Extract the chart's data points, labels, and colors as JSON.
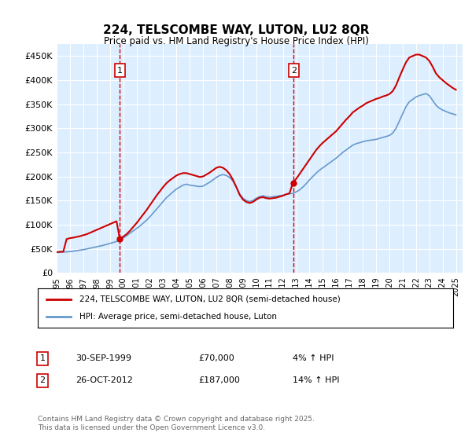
{
  "title": "224, TELSCOMBE WAY, LUTON, LU2 8QR",
  "subtitle": "Price paid vs. HM Land Registry's House Price Index (HPI)",
  "ylabel_ticks": [
    "£0",
    "£50K",
    "£100K",
    "£150K",
    "£200K",
    "£250K",
    "£300K",
    "£350K",
    "£400K",
    "£450K"
  ],
  "ytick_values": [
    0,
    50000,
    100000,
    150000,
    200000,
    250000,
    300000,
    350000,
    400000,
    450000
  ],
  "ylim": [
    0,
    475000
  ],
  "xlim_start": 1995.0,
  "xlim_end": 2025.5,
  "sale1_x": 1999.75,
  "sale1_y": 70000,
  "sale1_label": "1",
  "sale2_x": 2012.82,
  "sale2_y": 187000,
  "sale2_label": "2",
  "legend_line1": "224, TELSCOMBE WAY, LUTON, LU2 8QR (semi-detached house)",
  "legend_line2": "HPI: Average price, semi-detached house, Luton",
  "table_row1": [
    "1",
    "30-SEP-1999",
    "£70,000",
    "4% ↑ HPI"
  ],
  "table_row2": [
    "2",
    "26-OCT-2012",
    "£187,000",
    "14% ↑ HPI"
  ],
  "footer": "Contains HM Land Registry data © Crown copyright and database right 2025.\nThis data is licensed under the Open Government Licence v3.0.",
  "color_sale": "#cc0000",
  "color_hpi": "#6699cc",
  "background_plot": "#ddeeff",
  "background_fig": "#ffffff",
  "grid_color": "#ffffff",
  "dashed_color": "#cc0000",
  "hpi_data_x": [
    1995.0,
    1995.25,
    1995.5,
    1995.75,
    1996.0,
    1996.25,
    1996.5,
    1996.75,
    1997.0,
    1997.25,
    1997.5,
    1997.75,
    1998.0,
    1998.25,
    1998.5,
    1998.75,
    1999.0,
    1999.25,
    1999.5,
    1999.75,
    2000.0,
    2000.25,
    2000.5,
    2000.75,
    2001.0,
    2001.25,
    2001.5,
    2001.75,
    2002.0,
    2002.25,
    2002.5,
    2002.75,
    2003.0,
    2003.25,
    2003.5,
    2003.75,
    2004.0,
    2004.25,
    2004.5,
    2004.75,
    2005.0,
    2005.25,
    2005.5,
    2005.75,
    2006.0,
    2006.25,
    2006.5,
    2006.75,
    2007.0,
    2007.25,
    2007.5,
    2007.75,
    2008.0,
    2008.25,
    2008.5,
    2008.75,
    2009.0,
    2009.25,
    2009.5,
    2009.75,
    2010.0,
    2010.25,
    2010.5,
    2010.75,
    2011.0,
    2011.25,
    2011.5,
    2011.75,
    2012.0,
    2012.25,
    2012.5,
    2012.75,
    2013.0,
    2013.25,
    2013.5,
    2013.75,
    2014.0,
    2014.25,
    2014.5,
    2014.75,
    2015.0,
    2015.25,
    2015.5,
    2015.75,
    2016.0,
    2016.25,
    2016.5,
    2016.75,
    2017.0,
    2017.25,
    2017.5,
    2017.75,
    2018.0,
    2018.25,
    2018.5,
    2018.75,
    2019.0,
    2019.25,
    2019.5,
    2019.75,
    2020.0,
    2020.25,
    2020.5,
    2020.75,
    2021.0,
    2021.25,
    2021.5,
    2021.75,
    2022.0,
    2022.25,
    2022.5,
    2022.75,
    2023.0,
    2023.25,
    2023.5,
    2023.75,
    2024.0,
    2024.25,
    2024.5,
    2024.75,
    2025.0
  ],
  "hpi_data_y": [
    42000,
    42500,
    43000,
    43500,
    44000,
    45000,
    46000,
    47000,
    48000,
    49500,
    51000,
    52500,
    54000,
    55500,
    57000,
    59000,
    61000,
    63000,
    65000,
    67000,
    72000,
    77000,
    82000,
    87000,
    92000,
    97000,
    103000,
    109000,
    116000,
    124000,
    132000,
    140000,
    148000,
    156000,
    162000,
    168000,
    174000,
    178000,
    182000,
    184000,
    182000,
    181000,
    180000,
    179000,
    180000,
    184000,
    188000,
    193000,
    198000,
    202000,
    204000,
    202000,
    198000,
    190000,
    178000,
    164000,
    155000,
    150000,
    148000,
    150000,
    155000,
    158000,
    160000,
    158000,
    157000,
    158000,
    159000,
    160000,
    161000,
    163000,
    164000,
    165000,
    168000,
    172000,
    178000,
    185000,
    193000,
    200000,
    207000,
    213000,
    218000,
    223000,
    228000,
    233000,
    238000,
    244000,
    250000,
    255000,
    260000,
    265000,
    268000,
    270000,
    272000,
    274000,
    275000,
    276000,
    277000,
    279000,
    281000,
    283000,
    285000,
    290000,
    300000,
    315000,
    330000,
    345000,
    355000,
    360000,
    365000,
    368000,
    370000,
    372000,
    368000,
    358000,
    348000,
    342000,
    338000,
    335000,
    332000,
    330000,
    328000
  ],
  "sale_line_x": [
    1995.0,
    1995.25,
    1995.5,
    1995.75,
    1996.0,
    1996.25,
    1996.5,
    1996.75,
    1997.0,
    1997.25,
    1997.5,
    1997.75,
    1998.0,
    1998.25,
    1998.5,
    1998.75,
    1999.0,
    1999.25,
    1999.5,
    1999.75,
    2000.0,
    2000.25,
    2000.5,
    2000.75,
    2001.0,
    2001.25,
    2001.5,
    2001.75,
    2002.0,
    2002.25,
    2002.5,
    2002.75,
    2003.0,
    2003.25,
    2003.5,
    2003.75,
    2004.0,
    2004.25,
    2004.5,
    2004.75,
    2005.0,
    2005.25,
    2005.5,
    2005.75,
    2006.0,
    2006.25,
    2006.5,
    2006.75,
    2007.0,
    2007.25,
    2007.5,
    2007.75,
    2008.0,
    2008.25,
    2008.5,
    2008.75,
    2009.0,
    2009.25,
    2009.5,
    2009.75,
    2010.0,
    2010.25,
    2010.5,
    2010.75,
    2011.0,
    2011.25,
    2011.5,
    2011.75,
    2012.0,
    2012.25,
    2012.5,
    2012.75,
    2013.0,
    2013.25,
    2013.5,
    2013.75,
    2014.0,
    2014.25,
    2014.5,
    2014.75,
    2015.0,
    2015.25,
    2015.5,
    2015.75,
    2016.0,
    2016.25,
    2016.5,
    2016.75,
    2017.0,
    2017.25,
    2017.5,
    2017.75,
    2018.0,
    2018.25,
    2018.5,
    2018.75,
    2019.0,
    2019.25,
    2019.5,
    2019.75,
    2020.0,
    2020.25,
    2020.5,
    2020.75,
    2021.0,
    2021.25,
    2021.5,
    2021.75,
    2022.0,
    2022.25,
    2022.5,
    2022.75,
    2023.0,
    2023.25,
    2023.5,
    2023.75,
    2024.0,
    2024.25,
    2024.5,
    2024.75,
    2025.0
  ],
  "sale_line_y": [
    43000,
    43500,
    44000,
    70000,
    72000,
    73000,
    74500,
    76000,
    78000,
    80000,
    83000,
    86000,
    89000,
    92000,
    95000,
    98000,
    101000,
    104000,
    107000,
    70000,
    75000,
    80000,
    87000,
    95000,
    103000,
    112000,
    121000,
    130000,
    140000,
    150000,
    160000,
    169000,
    178000,
    186000,
    192000,
    197000,
    202000,
    205000,
    207000,
    207000,
    205000,
    203000,
    201000,
    199000,
    200000,
    204000,
    208000,
    213000,
    218000,
    220000,
    218000,
    213000,
    205000,
    193000,
    178000,
    162000,
    152000,
    147000,
    145000,
    147000,
    152000,
    156000,
    157000,
    155000,
    154000,
    155000,
    156000,
    158000,
    160000,
    163000,
    165000,
    187000,
    195000,
    205000,
    215000,
    225000,
    235000,
    245000,
    255000,
    263000,
    270000,
    276000,
    282000,
    288000,
    294000,
    302000,
    310000,
    318000,
    325000,
    333000,
    338000,
    343000,
    347000,
    352000,
    355000,
    358000,
    361000,
    363000,
    366000,
    368000,
    371000,
    377000,
    389000,
    406000,
    422000,
    437000,
    447000,
    450000,
    453000,
    453000,
    450000,
    447000,
    440000,
    428000,
    414000,
    406000,
    400000,
    394000,
    389000,
    384000,
    380000
  ]
}
